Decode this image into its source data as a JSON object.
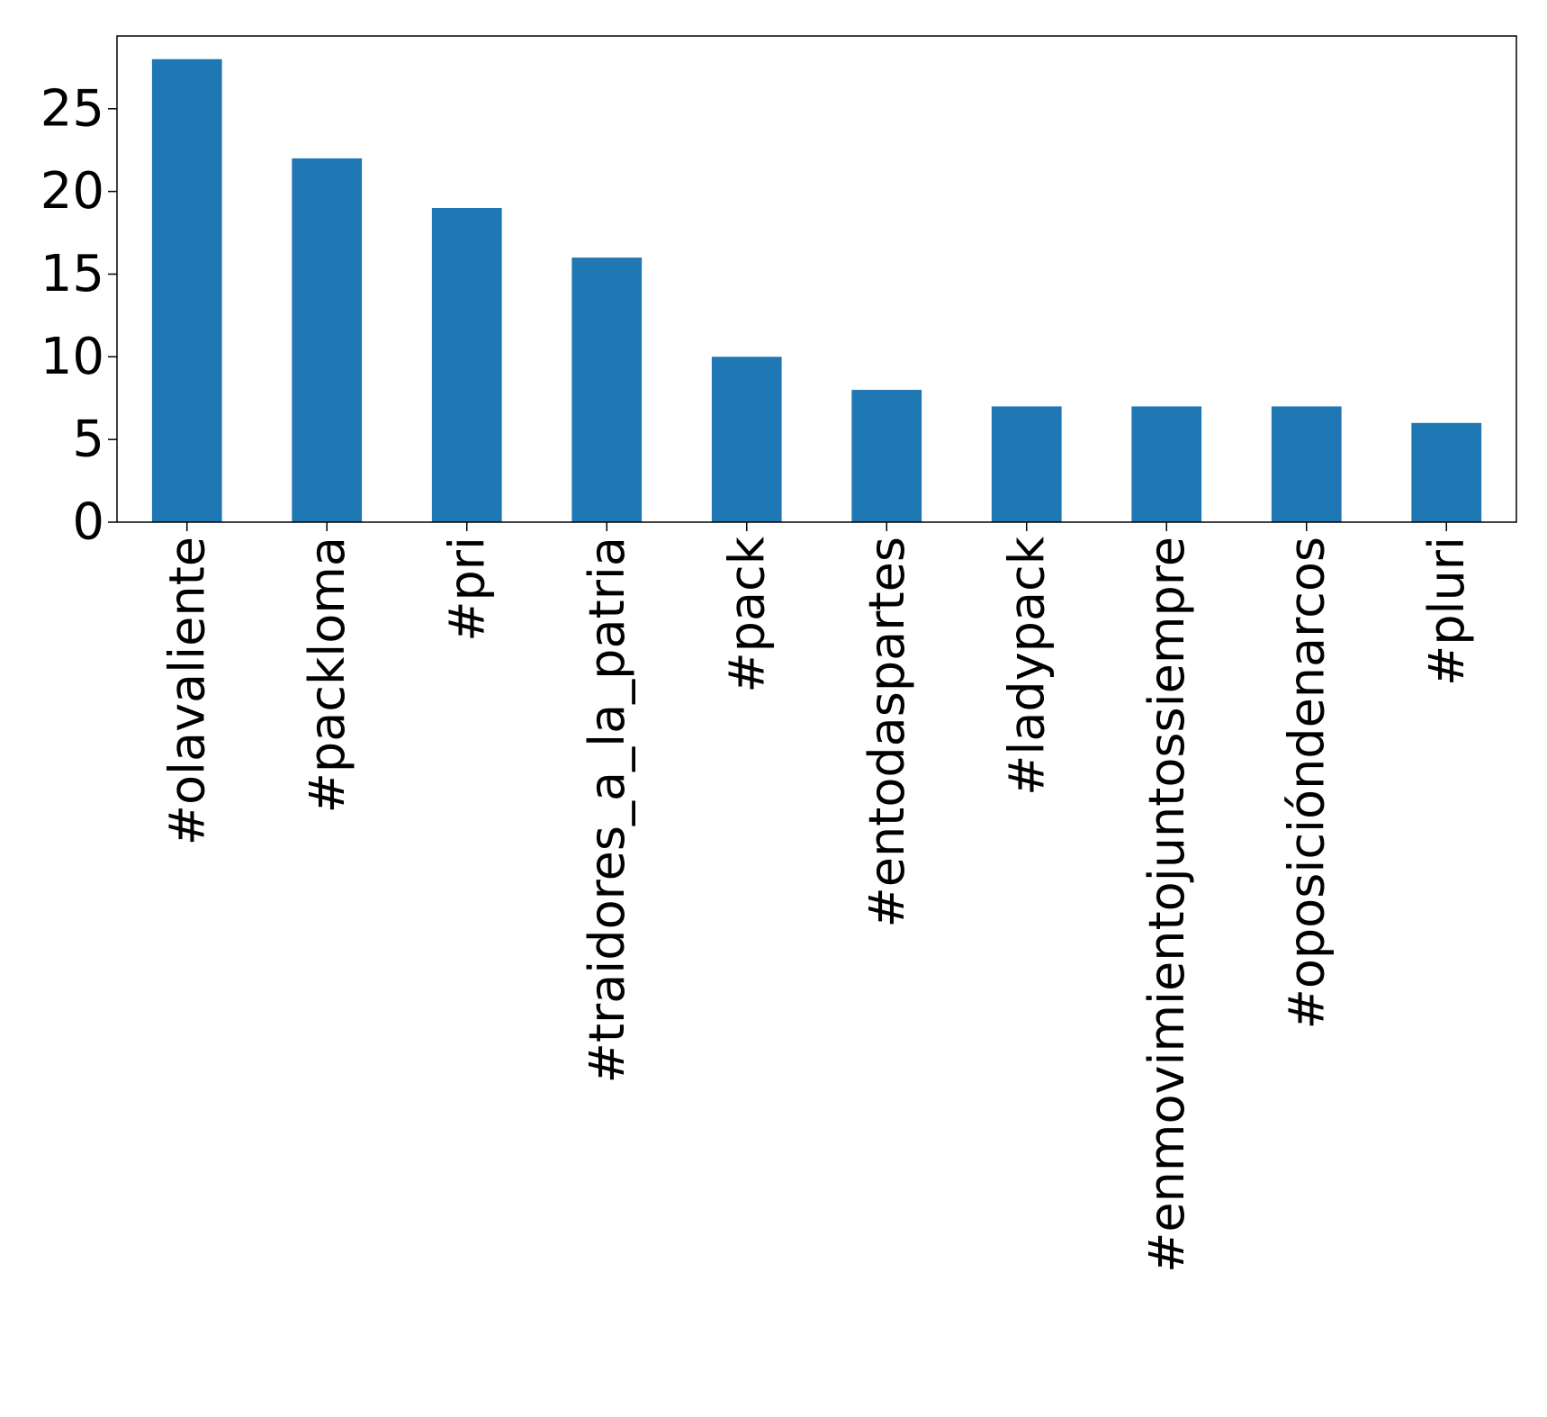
{
  "chart_data": {
    "type": "bar",
    "title": "",
    "xlabel": "",
    "ylabel": "",
    "categories": [
      "#olavaliente",
      "#packloma",
      "#pri",
      "#traidores_a_la_patria",
      "#pack",
      "#entodaspartes",
      "#ladypack",
      "#enmovimientojuntossiempre",
      "#oposicióndenarcos",
      "#pluri"
    ],
    "values": [
      28,
      22,
      19,
      16,
      10,
      8,
      7,
      7,
      7,
      6
    ],
    "ylim": [
      0,
      29.4
    ],
    "yticks": [
      0,
      5,
      10,
      15,
      20,
      25
    ],
    "legend": "none",
    "grid": false,
    "colors": {
      "bar": "#1f77b4",
      "axis": "#000000",
      "background": "#ffffff"
    }
  }
}
